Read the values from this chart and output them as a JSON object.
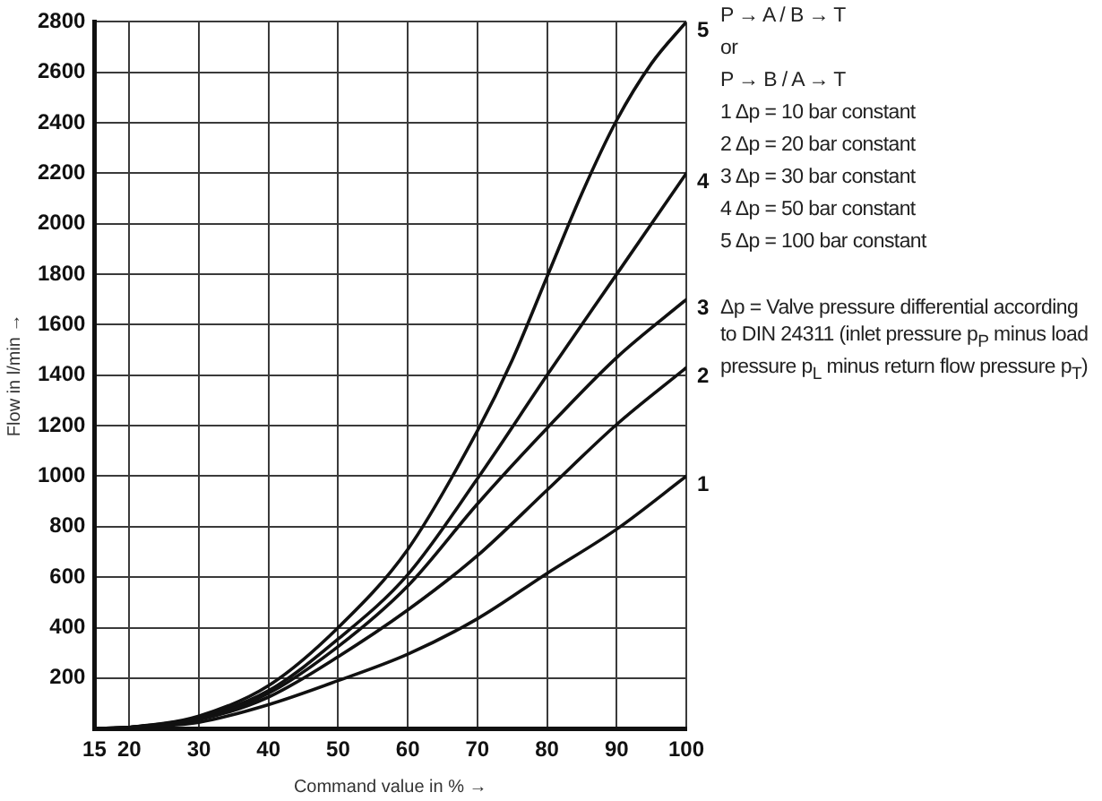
{
  "chart_data": {
    "type": "line",
    "xlabel": "Command value in % →",
    "ylabel": "Flow in l/min →",
    "xlim": [
      15,
      100
    ],
    "xticks": [
      15,
      20,
      30,
      40,
      50,
      60,
      70,
      80,
      90,
      100
    ],
    "ylim": [
      0,
      2800
    ],
    "yticks": [
      200,
      400,
      600,
      800,
      1000,
      1200,
      1400,
      1600,
      1800,
      2000,
      2200,
      2400,
      2600,
      2800
    ],
    "grid": true,
    "marker": "none",
    "line_style": "solid",
    "x": [
      15,
      20,
      30,
      40,
      50,
      60,
      70,
      80,
      90,
      100
    ],
    "series": [
      {
        "name": "1",
        "color": "#111111",
        "values": [
          0,
          5,
          25,
          95,
          190,
          295,
          435,
          615,
          790,
          1000
        ]
      },
      {
        "name": "2",
        "color": "#111111",
        "values": [
          0,
          5,
          35,
          125,
          285,
          470,
          685,
          945,
          1205,
          1430
        ]
      },
      {
        "name": "3",
        "color": "#111111",
        "values": [
          0,
          5,
          40,
          140,
          325,
          565,
          890,
          1190,
          1470,
          1700
        ]
      },
      {
        "name": "4",
        "color": "#111111",
        "values": [
          0,
          5,
          45,
          150,
          355,
          610,
          990,
          1400,
          1800,
          2200
        ]
      },
      {
        "name": "5",
        "color": "#111111",
        "x": [
          15,
          20,
          30,
          40,
          50,
          60,
          70,
          75,
          80,
          85,
          90,
          95,
          100
        ],
        "values": [
          0,
          5,
          50,
          170,
          400,
          710,
          1180,
          1460,
          1790,
          2120,
          2410,
          2635,
          2800
        ]
      }
    ],
    "annotations": [
      "P → A / B → T",
      "or",
      "P → B / A → T",
      "1 Δp = 10 bar constant",
      "2 Δp = 20 bar constant",
      "3 Δp = 30 bar constant",
      "4 Δp = 50 bar constant",
      "5 Δp = 100 bar constant",
      "Δp = Valve pressure differential according to DIN 24311 (inlet pressure p$_{P}$ minus load pressure p$_{L}$ minus return flow pressure p$_{T}$)"
    ]
  }
}
